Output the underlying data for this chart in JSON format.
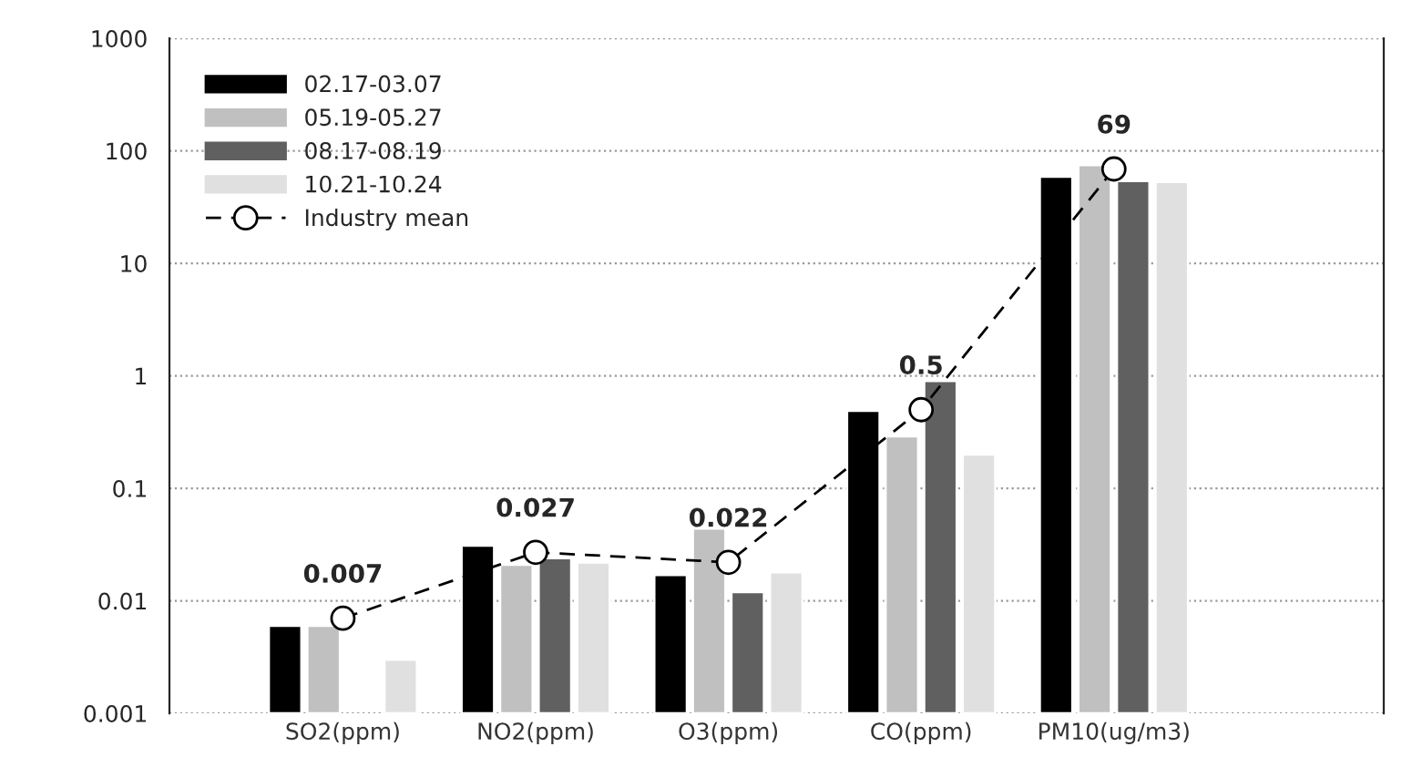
{
  "chart_data": {
    "type": "bar",
    "categories": [
      "SO2(ppm)",
      "NO2(ppm)",
      "O3(ppm)",
      "CO(ppm)",
      "PM10(ug/m3)"
    ],
    "series": [
      {
        "name": "02.17-03.07",
        "color": "#000000",
        "values": [
          0.006,
          0.031,
          0.017,
          0.49,
          59
        ]
      },
      {
        "name": "05.19-05.27",
        "color": "#c0c0c0",
        "values": [
          0.006,
          0.021,
          0.044,
          0.29,
          75
        ]
      },
      {
        "name": "08.17-08.19",
        "color": "#606060",
        "values": [
          null,
          0.024,
          0.012,
          0.9,
          54
        ]
      },
      {
        "name": "10.21-10.24",
        "color": "#e0e0e0",
        "values": [
          0.003,
          0.022,
          0.018,
          0.2,
          53
        ]
      },
      {
        "name": "Industry mean",
        "type": "line",
        "color": "#000000",
        "marker": "circle",
        "line_style": "dashed",
        "data_labels": true,
        "values": [
          0.007,
          0.027,
          0.022,
          0.5,
          69
        ]
      }
    ],
    "log": true,
    "ylim": [
      0.001,
      1000
    ],
    "yticks": [
      0.001,
      0.01,
      0.1,
      1,
      10,
      100,
      1000
    ],
    "grid": "y",
    "legend": "top left"
  }
}
